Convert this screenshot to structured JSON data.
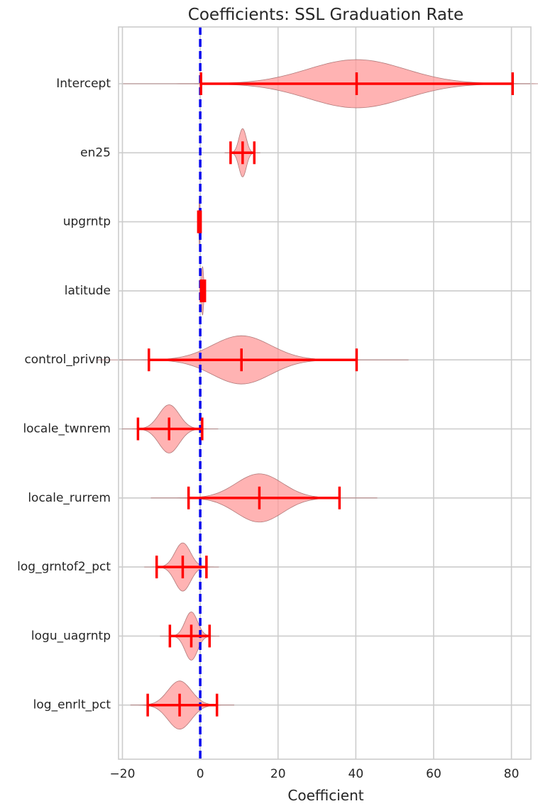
{
  "chart_data": {
    "type": "violin",
    "title": "Coefficients: SSL Graduation Rate",
    "xlabel": "Coefficient",
    "ylabel": "",
    "xlim": [
      -21,
      85
    ],
    "xticks": [
      -20,
      0,
      20,
      40,
      60,
      80
    ],
    "xtick_labels": [
      "−20",
      "0",
      "20",
      "40",
      "60",
      "80"
    ],
    "grid": true,
    "reference_line": {
      "x": 0,
      "color": "#0000ee",
      "style": "dashed"
    },
    "colors": {
      "violin_fill": "#ff9999",
      "violin_edge": "#b07878",
      "errorbar": "#ff0000"
    },
    "categories": [
      "Intercept",
      "en25",
      "upgrntp",
      "latitude",
      "control_privnp",
      "locale_twnrem",
      "locale_rurrem",
      "log_grntof2_pct",
      "logu_uagrntp",
      "log_enrlt_pct"
    ],
    "series": [
      {
        "category": "Intercept",
        "min": 0.2,
        "mean": 40.2,
        "max": 80.3,
        "sd": 12.5
      },
      {
        "category": "en25",
        "min": 7.8,
        "mean": 10.9,
        "max": 13.9,
        "sd": 0.95
      },
      {
        "category": "upgrntp",
        "min": -0.5,
        "mean": -0.2,
        "max": 0.1,
        "sd": 0.12
      },
      {
        "category": "latitude",
        "min": 0.2,
        "mean": 0.6,
        "max": 1.2,
        "sd": 0.25
      },
      {
        "category": "control_privnp",
        "min": -13.2,
        "mean": 10.6,
        "max": 40.2,
        "sd": 7.5
      },
      {
        "category": "locale_twnrem",
        "min": -16.0,
        "mean": -8.0,
        "max": 0.5,
        "sd": 2.6
      },
      {
        "category": "locale_rurrem",
        "min": -3.0,
        "mean": 15.2,
        "max": 35.8,
        "sd": 6.0
      },
      {
        "category": "log_grntof2_pct",
        "min": -11.2,
        "mean": -4.5,
        "max": 1.6,
        "sd": 2.0
      },
      {
        "category": "logu_uagrntp",
        "min": -7.8,
        "mean": -2.3,
        "max": 2.4,
        "sd": 1.6
      },
      {
        "category": "log_enrlt_pct",
        "min": -13.5,
        "mean": -5.3,
        "max": 4.3,
        "sd": 3.0
      }
    ]
  }
}
